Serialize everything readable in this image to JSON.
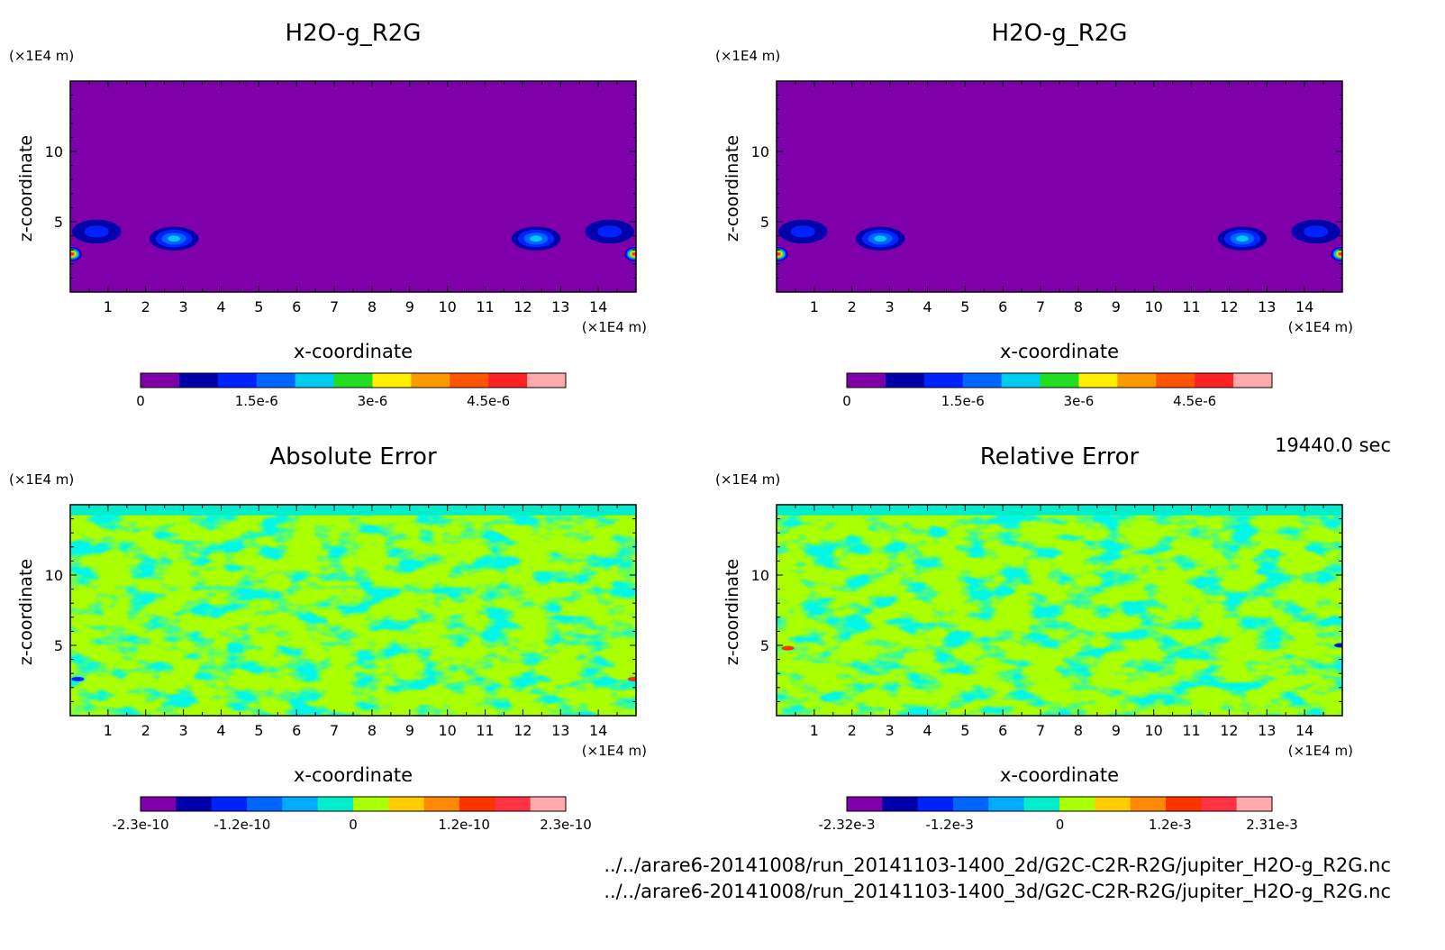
{
  "chart_data": [
    {
      "type": "heatmap",
      "title": "H2O-g_R2G",
      "xlabel": "x-coordinate",
      "ylabel": "z-coordinate",
      "x_unit": "(×1E4 m)",
      "y_unit": "(×1E4 m)",
      "xlim": [
        0,
        15
      ],
      "ylim": [
        0,
        15
      ],
      "x_ticks": [
        "1",
        "2",
        "3",
        "4",
        "5",
        "6",
        "7",
        "8",
        "9",
        "10",
        "11",
        "12",
        "13",
        "14"
      ],
      "y_ticks": [
        "5",
        "10"
      ],
      "colorbar": {
        "min": 0,
        "max": 5.5e-06,
        "colors": [
          "#7f00aa",
          "#0000aa",
          "#0022ff",
          "#0066ff",
          "#00ccee",
          "#22dd22",
          "#ffee00",
          "#ff9900",
          "#ff5500",
          "#ff2222",
          "#ffaaaa"
        ],
        "tick_labels": [
          "0",
          "1.5e-6",
          "3e-6",
          "4.5e-6"
        ]
      },
      "background_value": 0,
      "features": [
        {
          "x": 2.75,
          "z": 3.8,
          "peak": 2.4e-06
        },
        {
          "x": 12.35,
          "z": 3.8,
          "peak": 2.4e-06
        },
        {
          "x": 0.7,
          "z": 4.3,
          "peak": 1.2e-06
        },
        {
          "x": 14.3,
          "z": 4.3,
          "peak": 1.2e-06
        },
        {
          "x": 0.05,
          "z": 2.7,
          "peak": 4.5e-06
        },
        {
          "x": 14.95,
          "z": 2.7,
          "peak": 4.5e-06
        }
      ]
    },
    {
      "type": "heatmap",
      "title": "H2O-g_R2G",
      "xlabel": "x-coordinate",
      "ylabel": "z-coordinate",
      "x_unit": "(×1E4 m)",
      "y_unit": "(×1E4 m)",
      "xlim": [
        0,
        15
      ],
      "ylim": [
        0,
        15
      ],
      "x_ticks": [
        "1",
        "2",
        "3",
        "4",
        "5",
        "6",
        "7",
        "8",
        "9",
        "10",
        "11",
        "12",
        "13",
        "14"
      ],
      "y_ticks": [
        "5",
        "10"
      ],
      "colorbar": {
        "min": 0,
        "max": 5.5e-06,
        "colors": [
          "#7f00aa",
          "#0000aa",
          "#0022ff",
          "#0066ff",
          "#00ccee",
          "#22dd22",
          "#ffee00",
          "#ff9900",
          "#ff5500",
          "#ff2222",
          "#ffaaaa"
        ],
        "tick_labels": [
          "0",
          "1.5e-6",
          "3e-6",
          "4.5e-6"
        ]
      },
      "background_value": 0,
      "features": [
        {
          "x": 2.75,
          "z": 3.8,
          "peak": 2.4e-06
        },
        {
          "x": 12.35,
          "z": 3.8,
          "peak": 2.4e-06
        },
        {
          "x": 0.7,
          "z": 4.3,
          "peak": 1.2e-06
        },
        {
          "x": 14.3,
          "z": 4.3,
          "peak": 1.2e-06
        },
        {
          "x": 0.05,
          "z": 2.7,
          "peak": 4.5e-06
        },
        {
          "x": 14.95,
          "z": 2.7,
          "peak": 4.5e-06
        }
      ]
    },
    {
      "type": "heatmap",
      "title": "Absolute Error",
      "xlabel": "x-coordinate",
      "ylabel": "z-coordinate",
      "x_unit": "(×1E4 m)",
      "y_unit": "(×1E4 m)",
      "xlim": [
        0,
        15
      ],
      "ylim": [
        0,
        15
      ],
      "x_ticks": [
        "1",
        "2",
        "3",
        "4",
        "5",
        "6",
        "7",
        "8",
        "9",
        "10",
        "11",
        "12",
        "13",
        "14"
      ],
      "y_ticks": [
        "5",
        "10"
      ],
      "colorbar": {
        "min": -2.3e-10,
        "max": 2.3e-10,
        "colors": [
          "#7f00aa",
          "#0000aa",
          "#0022ff",
          "#0066ff",
          "#00aaff",
          "#00eecc",
          "#aaff00",
          "#ffcc00",
          "#ff8800",
          "#ff3300",
          "#ff3344",
          "#ffaaaa"
        ],
        "tick_labels": [
          "-2.3e-10",
          "-1.2e-10",
          "0",
          "1.2e-10",
          "2.3e-10"
        ]
      },
      "background_value": 0,
      "pattern_colors": {
        "dominant": "#aaff00",
        "secondary": "#00eecc"
      },
      "edge_spots": [
        {
          "x": 0.2,
          "z": 2.6,
          "color": "#0022ff"
        },
        {
          "x": 14.95,
          "z": 2.6,
          "color": "#ff3300"
        }
      ]
    },
    {
      "type": "heatmap",
      "title": "Relative Error",
      "xlabel": "x-coordinate",
      "ylabel": "z-coordinate",
      "x_unit": "(×1E4 m)",
      "y_unit": "(×1E4 m)",
      "xlim": [
        0,
        15
      ],
      "ylim": [
        0,
        15
      ],
      "x_ticks": [
        "1",
        "2",
        "3",
        "4",
        "5",
        "6",
        "7",
        "8",
        "9",
        "10",
        "11",
        "12",
        "13",
        "14"
      ],
      "y_ticks": [
        "5",
        "10"
      ],
      "colorbar": {
        "min": -0.00232,
        "max": 0.00231,
        "colors": [
          "#7f00aa",
          "#0000aa",
          "#0022ff",
          "#0066ff",
          "#00aaff",
          "#00eecc",
          "#aaff00",
          "#ffcc00",
          "#ff8800",
          "#ff3300",
          "#ff3344",
          "#ffaaaa"
        ],
        "tick_labels": [
          "-2.32e-3",
          "-1.2e-3",
          "0",
          "1.2e-3",
          "2.31e-3"
        ]
      },
      "background_value": 0,
      "pattern_colors": {
        "dominant": "#aaff00",
        "secondary": "#00eecc"
      },
      "edge_spots": [
        {
          "x": 0.3,
          "z": 4.8,
          "color": "#ff3300"
        },
        {
          "x": 14.95,
          "z": 5.0,
          "color": "#0022ff"
        }
      ]
    }
  ],
  "timestamp": "19440.0 sec",
  "files": [
    "../../arare6-20141008/run_20141103-1400_2d/G2C-C2R-R2G/jupiter_H2O-g_R2G.nc",
    "../../arare6-20141008/run_20141103-1400_3d/G2C-C2R-R2G/jupiter_H2O-g_R2G.nc"
  ]
}
